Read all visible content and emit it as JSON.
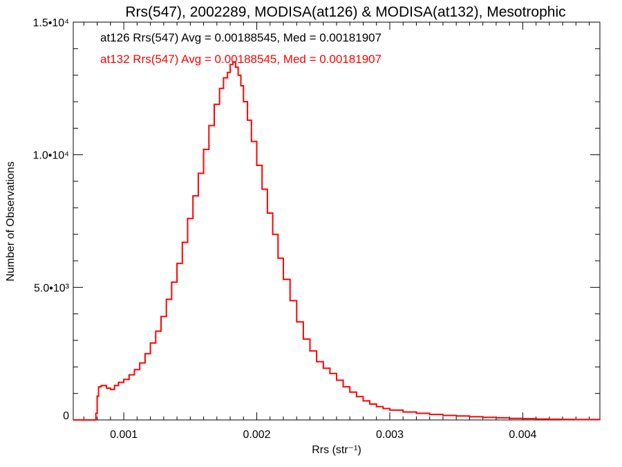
{
  "chart_data": {
    "type": "line",
    "title": "Rrs(547), 2002289, MODISA(at126) & MODISA(at132), Mesotrophic",
    "xlabel": "Rrs (str⁻¹)",
    "ylabel": "Number of Observations",
    "xlim": [
      0.00062,
      0.00458
    ],
    "ylim": [
      0,
      15000
    ],
    "x_ticks": [
      {
        "value": 0.001,
        "label": "0.001"
      },
      {
        "value": 0.002,
        "label": "0.002"
      },
      {
        "value": 0.003,
        "label": "0.003"
      },
      {
        "value": 0.004,
        "label": "0.004"
      }
    ],
    "y_ticks": [
      {
        "value": 0,
        "label": "0"
      },
      {
        "value": 5000,
        "label": "5.0•10³"
      },
      {
        "value": 10000,
        "label": "1.0•10⁴"
      },
      {
        "value": 15000,
        "label": "1.5•10⁴"
      }
    ],
    "grid": false,
    "legend_position": "top-left",
    "annotations": [
      {
        "text": "at126 Rrs(547) Avg = 0.00188545, Med = 0.00181907",
        "color": "#000000"
      },
      {
        "text": "at132 Rrs(547) Avg = 0.00188545, Med = 0.00181907",
        "color": "#ff0000"
      }
    ],
    "series": [
      {
        "color": "#ff0000",
        "style": "step",
        "points": [
          [
            0.00062,
            0
          ],
          [
            0.00078,
            0
          ],
          [
            0.00079,
            250
          ],
          [
            0.0008,
            900
          ],
          [
            0.00081,
            1250
          ],
          [
            0.00083,
            1300
          ],
          [
            0.00085,
            1300
          ],
          [
            0.00087,
            1200
          ],
          [
            0.0009,
            1150
          ],
          [
            0.00093,
            1300
          ],
          [
            0.00096,
            1420
          ],
          [
            0.001,
            1530
          ],
          [
            0.00104,
            1700
          ],
          [
            0.00108,
            1900
          ],
          [
            0.00112,
            2150
          ],
          [
            0.00116,
            2500
          ],
          [
            0.0012,
            2900
          ],
          [
            0.00124,
            3350
          ],
          [
            0.00128,
            3900
          ],
          [
            0.00132,
            4550
          ],
          [
            0.00136,
            5200
          ],
          [
            0.0014,
            5900
          ],
          [
            0.00144,
            6700
          ],
          [
            0.00148,
            7600
          ],
          [
            0.00152,
            8450
          ],
          [
            0.00156,
            9300
          ],
          [
            0.0016,
            10200
          ],
          [
            0.00164,
            11100
          ],
          [
            0.00168,
            11900
          ],
          [
            0.00172,
            12500
          ],
          [
            0.00175,
            12900
          ],
          [
            0.00178,
            13100
          ],
          [
            0.0018,
            13400
          ],
          [
            0.00182,
            13500
          ],
          [
            0.00184,
            13300
          ],
          [
            0.00186,
            13000
          ],
          [
            0.00188,
            12600
          ],
          [
            0.0019,
            12000
          ],
          [
            0.00193,
            11300
          ],
          [
            0.00196,
            10500
          ],
          [
            0.002,
            9600
          ],
          [
            0.00204,
            8700
          ],
          [
            0.00208,
            7800
          ],
          [
            0.00212,
            7000
          ],
          [
            0.00216,
            6100
          ],
          [
            0.0022,
            5300
          ],
          [
            0.00225,
            4500
          ],
          [
            0.0023,
            3700
          ],
          [
            0.00235,
            3050
          ],
          [
            0.0024,
            2600
          ],
          [
            0.00245,
            2200
          ],
          [
            0.0025,
            1950
          ],
          [
            0.00255,
            1750
          ],
          [
            0.0026,
            1500
          ],
          [
            0.00265,
            1250
          ],
          [
            0.0027,
            1050
          ],
          [
            0.00275,
            880
          ],
          [
            0.0028,
            720
          ],
          [
            0.00285,
            600
          ],
          [
            0.0029,
            500
          ],
          [
            0.00295,
            430
          ],
          [
            0.003,
            370
          ],
          [
            0.0031,
            300
          ],
          [
            0.0032,
            250
          ],
          [
            0.0033,
            210
          ],
          [
            0.0034,
            170
          ],
          [
            0.0035,
            150
          ],
          [
            0.0036,
            120
          ],
          [
            0.0037,
            100
          ],
          [
            0.0038,
            80
          ],
          [
            0.0039,
            60
          ],
          [
            0.004,
            50
          ],
          [
            0.0041,
            35
          ],
          [
            0.0042,
            25
          ],
          [
            0.0043,
            20
          ],
          [
            0.0044,
            15
          ],
          [
            0.00458,
            10
          ]
        ]
      }
    ]
  }
}
